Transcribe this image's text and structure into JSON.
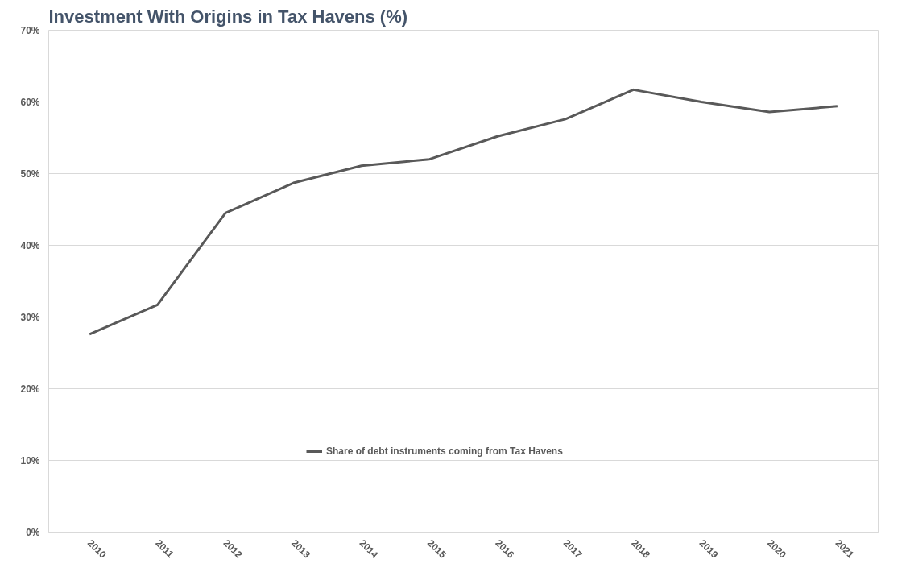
{
  "chart_data": {
    "type": "line",
    "title": "Investment With Origins in Tax Havens (%)",
    "categories": [
      "2010",
      "2011",
      "2012",
      "2013",
      "2014",
      "2015",
      "2016",
      "2017",
      "2018",
      "2019",
      "2020",
      "2021"
    ],
    "series": [
      {
        "name": "Share of debt instruments coming from Tax Havens",
        "color": "#595959",
        "values": [
          27.6,
          31.7,
          44.5,
          48.7,
          51.1,
          52.0,
          55.2,
          57.6,
          61.7,
          60.0,
          58.6,
          59.4
        ]
      }
    ],
    "ylim": [
      0,
      70
    ],
    "yticks": [
      {
        "value": 0,
        "label": "0%"
      },
      {
        "value": 10,
        "label": "10%"
      },
      {
        "value": 20,
        "label": "20%"
      },
      {
        "value": 30,
        "label": "30%"
      },
      {
        "value": 40,
        "label": "40%"
      },
      {
        "value": 50,
        "label": "50%"
      },
      {
        "value": 60,
        "label": "60%"
      },
      {
        "value": 70,
        "label": "70%"
      }
    ],
    "grid": "y",
    "legend": "bottom",
    "marker": "none",
    "line_style": "solid"
  }
}
